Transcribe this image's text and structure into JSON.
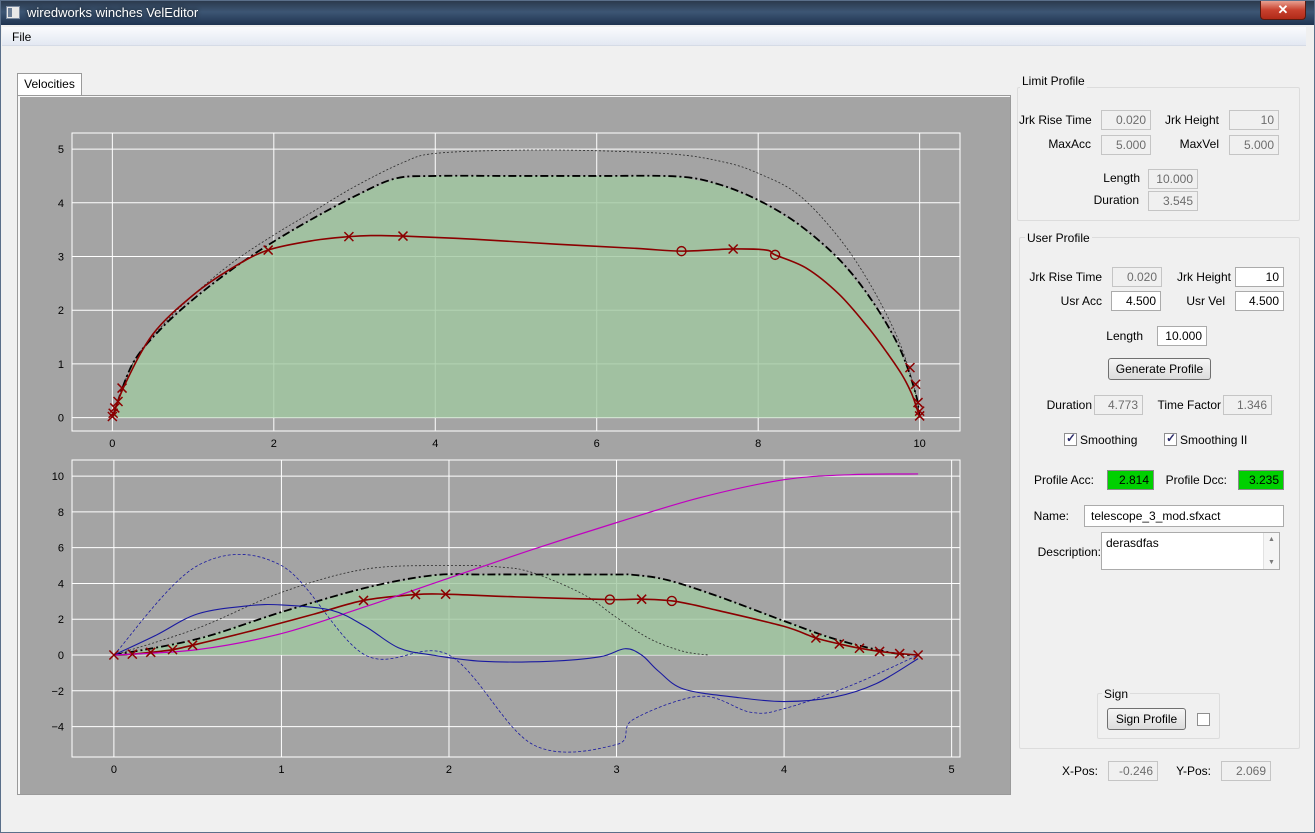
{
  "window": {
    "title": "wiredworks winches VelEditor",
    "close_glyph": "✕"
  },
  "menu": {
    "file": "File"
  },
  "tabs": [
    {
      "label": "Velocities"
    }
  ],
  "limit_profile": {
    "title": "Limit Profile",
    "jrk_rise_time_label": "Jrk Rise Time",
    "jrk_rise_time": "0.020",
    "jrk_height_label": "Jrk Height",
    "jrk_height": "10",
    "max_acc_label": "MaxAcc",
    "max_acc": "5.000",
    "max_vel_label": "MaxVel",
    "max_vel": "5.000",
    "length_label": "Length",
    "length": "10.000",
    "duration_label": "Duration",
    "duration": "3.545"
  },
  "user_profile": {
    "title": "User Profile",
    "jrk_rise_time_label": "Jrk Rise Time",
    "jrk_rise_time": "0.020",
    "jrk_height_label": "Jrk Height",
    "jrk_height": "10",
    "usr_acc_label": "Usr Acc",
    "usr_acc": "4.500",
    "usr_vel_label": "Usr Vel",
    "usr_vel": "4.500",
    "length_label": "Length",
    "length": "10.000",
    "generate_button": "Generate Profile",
    "duration_label": "Duration",
    "duration": "4.773",
    "time_factor_label": "Time Factor",
    "time_factor": "1.346",
    "smoothing_label": "Smoothing",
    "smoothing_checked": true,
    "smoothing2_label": "Smoothing II",
    "smoothing2_checked": true,
    "profile_acc_label": "Profile Acc:",
    "profile_acc": "2.814",
    "profile_dcc_label": "Profile Dcc:",
    "profile_dcc": "3.235",
    "name_label": "Name:",
    "name": "telescope_3_mod.sfxact",
    "description_label": "Description:",
    "description": "derasdfas"
  },
  "sign": {
    "title": "Sign",
    "button": "Sign Profile",
    "checked": false
  },
  "position": {
    "x_label": "X-Pos:",
    "x": "-0.246",
    "y_label": "Y-Pos:",
    "y": "2.069"
  },
  "colors": {
    "plot_bg": "#a4a4a4",
    "fill": "#a0c8a0",
    "user_curve": "#8b0000",
    "limit_curve": "#000000",
    "velocity_curve": "#c000c0",
    "accel_curve": "#1a1aa0",
    "status_green": "#00d000"
  },
  "chart_data": [
    {
      "type": "line",
      "title": "",
      "xlabel": "",
      "ylabel": "",
      "xlim": [
        -0.5,
        10.5
      ],
      "ylim": [
        -0.25,
        5.3
      ],
      "xticks": [
        "0",
        "2",
        "4",
        "6",
        "8",
        "10"
      ],
      "yticks": [
        "0",
        "1",
        "2",
        "3",
        "4",
        "5"
      ],
      "grid": true,
      "series": [
        {
          "style": "dashed-thin",
          "x": [
            0,
            0.25,
            0.6,
            1.0,
            1.5,
            2.0,
            2.5,
            3.0,
            3.6,
            4.0,
            5.0,
            6.0,
            7.0,
            7.6,
            8.0,
            8.5,
            9.0,
            9.4,
            9.75,
            9.95,
            10
          ],
          "y": [
            0,
            1.0,
            1.68,
            2.28,
            2.9,
            3.4,
            3.85,
            4.3,
            4.75,
            4.92,
            4.98,
            4.97,
            4.9,
            4.75,
            4.55,
            4.15,
            3.35,
            2.45,
            1.4,
            0.45,
            0
          ]
        },
        {
          "style": "dash-dot",
          "x": [
            0,
            0.25,
            0.6,
            1.0,
            1.5,
            2.0,
            2.5,
            3.0,
            3.5,
            4.0,
            5.0,
            6.0,
            7.0,
            7.5,
            8.0,
            8.5,
            9.0,
            9.4,
            9.75,
            9.95,
            10
          ],
          "y": [
            0,
            1.0,
            1.65,
            2.2,
            2.78,
            3.28,
            3.72,
            4.12,
            4.45,
            4.5,
            4.5,
            4.5,
            4.49,
            4.35,
            4.05,
            3.6,
            2.95,
            2.2,
            1.3,
            0.45,
            0
          ]
        },
        {
          "style": "solid",
          "x": [
            0,
            0.15,
            0.5,
            1.0,
            1.5,
            1.93,
            2.5,
            2.93,
            3.2,
            3.6,
            4.5,
            5.5,
            6.5,
            7.05,
            7.69,
            8.1,
            8.21,
            8.6,
            9.0,
            9.35,
            9.6,
            9.78,
            9.9,
            9.97,
            10
          ],
          "y": [
            0,
            0.6,
            1.55,
            2.28,
            2.8,
            3.12,
            3.3,
            3.37,
            3.39,
            3.38,
            3.32,
            3.23,
            3.15,
            3.1,
            3.14,
            3.12,
            3.03,
            2.78,
            2.3,
            1.7,
            1.2,
            0.8,
            0.45,
            0.15,
            0
          ]
        }
      ],
      "markers": [
        {
          "shape": "x",
          "x": [
            0,
            0.01,
            0.03,
            0.07,
            0.12,
            1.93,
            2.93,
            3.6,
            7.69,
            9.88,
            9.95,
            9.98,
            10.0,
            10.0
          ],
          "y": [
            0.02,
            0.08,
            0.18,
            0.3,
            0.55,
            3.12,
            3.37,
            3.38,
            3.14,
            0.93,
            0.62,
            0.28,
            0.12,
            0.03
          ]
        },
        {
          "shape": "o",
          "x": [
            7.05,
            8.21
          ],
          "y": [
            3.1,
            3.03
          ]
        }
      ]
    },
    {
      "type": "line",
      "title": "",
      "xlabel": "",
      "ylabel": "",
      "xlim": [
        -0.25,
        5.05
      ],
      "ylim": [
        -5.7,
        10.9
      ],
      "xticks": [
        "0",
        "1",
        "2",
        "3",
        "4",
        "5"
      ],
      "yticks": [
        "10",
        "8",
        "6",
        "4",
        "2",
        "0",
        "−2",
        "−4"
      ],
      "grid": true,
      "series": [
        {
          "style": "dashed-thin",
          "x": [
            0,
            0.5,
            1.0,
            1.5,
            2.0,
            2.3,
            2.5,
            2.8,
            3.0,
            3.2,
            3.4,
            3.55
          ],
          "y": [
            0,
            1.5,
            3.5,
            4.8,
            5.0,
            4.92,
            4.6,
            3.4,
            2.1,
            0.9,
            0.2,
            0
          ]
        },
        {
          "style": "dash-dot",
          "x": [
            0,
            0.5,
            1.0,
            1.5,
            1.9,
            2.2,
            2.6,
            3.0,
            3.1,
            3.3,
            3.6,
            4.0,
            4.3,
            4.6,
            4.75
          ],
          "y": [
            0,
            0.9,
            2.4,
            3.75,
            4.45,
            4.5,
            4.5,
            4.5,
            4.48,
            4.2,
            3.3,
            1.9,
            0.9,
            0.2,
            0
          ]
        },
        {
          "style": "solid",
          "x": [
            0,
            0.11,
            0.22,
            0.35,
            0.47,
            0.8,
            1.2,
            1.49,
            1.8,
            1.98,
            2.4,
            2.96,
            3.15,
            3.35,
            3.6,
            4.0,
            4.19,
            4.33,
            4.45,
            4.57,
            4.69,
            4.8
          ],
          "y": [
            0,
            0.05,
            0.15,
            0.3,
            0.55,
            1.3,
            2.3,
            3.05,
            3.38,
            3.4,
            3.25,
            3.1,
            3.12,
            3.0,
            2.5,
            1.6,
            0.95,
            0.62,
            0.38,
            0.2,
            0.08,
            0
          ]
        },
        {
          "style": "magenta",
          "x": [
            0,
            0.5,
            1.0,
            1.5,
            2.0,
            2.5,
            3.0,
            3.5,
            4.0,
            4.4,
            4.8
          ],
          "y": [
            0,
            0.3,
            1.2,
            2.7,
            4.3,
            5.9,
            7.4,
            8.8,
            9.8,
            10.08,
            10.12
          ]
        },
        {
          "style": "blue-solid",
          "x": [
            0,
            0.25,
            0.5,
            0.8,
            1.0,
            1.3,
            1.5,
            1.7,
            1.9,
            2.2,
            2.6,
            2.9,
            3.05,
            3.15,
            3.25,
            3.4,
            3.7,
            4.0,
            4.3,
            4.55,
            4.8
          ],
          "y": [
            0,
            1.1,
            2.3,
            2.75,
            2.8,
            2.5,
            1.6,
            0.4,
            0.0,
            -0.35,
            -0.35,
            -0.1,
            0.35,
            0.0,
            -0.9,
            -1.9,
            -2.35,
            -2.6,
            -2.35,
            -1.6,
            -0.2
          ]
        },
        {
          "style": "blue-dashed",
          "x": [
            0,
            0.5,
            1.0,
            1.5,
            2.0,
            2.5,
            3.0,
            3.1,
            3.5,
            3.8,
            4.0,
            4.4,
            4.8
          ],
          "y": [
            0,
            5.0,
            5.0,
            0.0,
            0.0,
            -5.0,
            -5.0,
            -3.6,
            -2.3,
            -3.2,
            -3.0,
            -1.7,
            0
          ]
        }
      ],
      "markers": [
        {
          "shape": "x",
          "x": [
            0,
            0.11,
            0.22,
            0.35,
            0.47,
            1.49,
            1.8,
            1.98,
            3.15,
            4.19,
            4.33,
            4.45,
            4.57,
            4.69,
            4.8
          ],
          "y": [
            0,
            0.05,
            0.15,
            0.3,
            0.55,
            3.05,
            3.38,
            3.4,
            3.12,
            0.95,
            0.62,
            0.38,
            0.2,
            0.08,
            0
          ]
        },
        {
          "shape": "o",
          "x": [
            2.96,
            3.33
          ],
          "y": [
            3.1,
            3.02
          ]
        }
      ]
    }
  ]
}
